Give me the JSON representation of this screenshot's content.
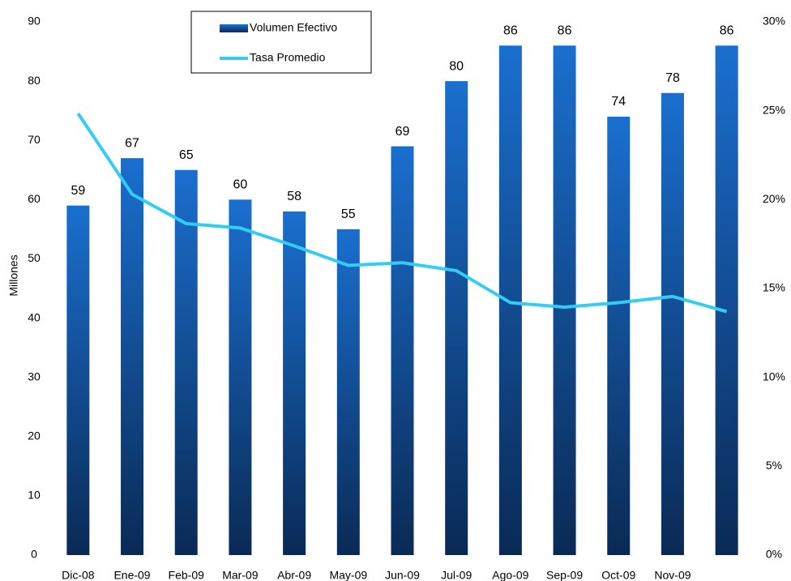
{
  "chart_data": {
    "type": "bar-line",
    "y_label": "Millones",
    "categories": [
      "Dic-08",
      "Ene-09",
      "Feb-09",
      "Mar-09",
      "Abr-09",
      "May-09",
      "Jun-09",
      "Jul-09",
      "Ago-09",
      "Sep-09",
      "Oct-09",
      "Nov-09",
      null
    ],
    "series": [
      {
        "name": "Volumen Efectivo",
        "type": "bar",
        "color": "#1a6fcf",
        "color_end": "#0a2a55",
        "values": [
          59,
          67,
          65,
          60,
          58,
          55,
          69,
          80,
          86,
          86,
          74,
          78,
          86
        ]
      },
      {
        "name": "Tasa Promedio",
        "type": "line",
        "axis": "y2",
        "color": "#33ccf5",
        "values": [
          24.85,
          20.3,
          18.65,
          18.4,
          17.4,
          16.3,
          16.45,
          16.0,
          14.2,
          13.95,
          14.2,
          14.55,
          13.7
        ]
      }
    ],
    "ylim": [
      0,
      90
    ],
    "yticks": [
      0,
      10,
      20,
      30,
      40,
      50,
      60,
      70,
      80,
      90
    ],
    "y2lim": [
      0,
      30
    ],
    "y2ticks": [
      {
        "value": 0,
        "label": "0%"
      },
      {
        "value": 5,
        "label": "5%"
      },
      {
        "value": 10,
        "label": "10%"
      },
      {
        "value": 15,
        "label": "15%"
      },
      {
        "value": 20,
        "label": "20%"
      },
      {
        "value": 25,
        "label": "25%"
      },
      {
        "value": 30,
        "label": "30%"
      }
    ],
    "legend": "top-left"
  }
}
